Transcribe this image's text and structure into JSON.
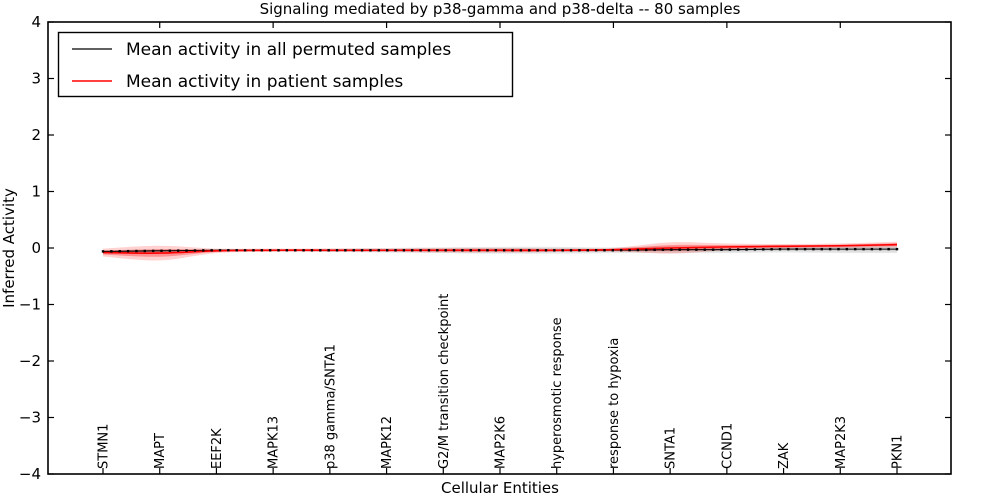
{
  "chart_data": {
    "type": "line",
    "title": "Signaling mediated by p38-gamma and p38-delta -- 80 samples",
    "xlabel": "Cellular Entities",
    "ylabel": "Inferred Activity",
    "ylim": [
      -4,
      4
    ],
    "yticks": [
      4,
      3,
      2,
      1,
      0,
      -1,
      -2,
      -3,
      -4
    ],
    "grid": false,
    "legend_position": "upper left",
    "samples_in_title": 80,
    "categories": [
      "STMN1",
      "MAPT",
      "EEF2K",
      "MAPK13",
      "p38 gamma/SNTA1",
      "MAPK12",
      "G2/M transition checkpoint",
      "MAP2K6",
      "hyperosmotic response",
      "response to hypoxia",
      "SNTA1",
      "CCND1",
      "ZAK",
      "MAP2K3",
      "PKN1"
    ],
    "series": [
      {
        "name": "Mean activity in all permuted samples",
        "color": "#000000",
        "band_color": "#808080",
        "marker": "small-black-squares",
        "values": [
          -0.06,
          -0.05,
          -0.04,
          -0.04,
          -0.04,
          -0.04,
          -0.04,
          -0.04,
          -0.04,
          -0.04,
          -0.03,
          -0.03,
          -0.02,
          -0.02,
          -0.02
        ],
        "spread": [
          0.02,
          0.03,
          0.02,
          0.02,
          0.03,
          0.04,
          0.05,
          0.06,
          0.06,
          0.05,
          0.06,
          0.06,
          0.06,
          0.07,
          0.07
        ]
      },
      {
        "name": "Mean activity in patient samples",
        "color": "#ff0000",
        "band_color": "#ff0000",
        "marker": "none",
        "values": [
          -0.08,
          -0.09,
          -0.05,
          -0.04,
          -0.04,
          -0.04,
          -0.04,
          -0.04,
          -0.04,
          -0.03,
          0.0,
          0.02,
          0.03,
          0.04,
          0.06
        ],
        "spread": [
          0.07,
          0.13,
          0.04,
          0.03,
          0.03,
          0.03,
          0.04,
          0.04,
          0.03,
          0.03,
          0.1,
          0.06,
          0.04,
          0.04,
          0.05
        ]
      }
    ],
    "top_tick_category_indices": [
      1,
      3,
      5,
      7,
      9,
      11,
      13
    ]
  }
}
